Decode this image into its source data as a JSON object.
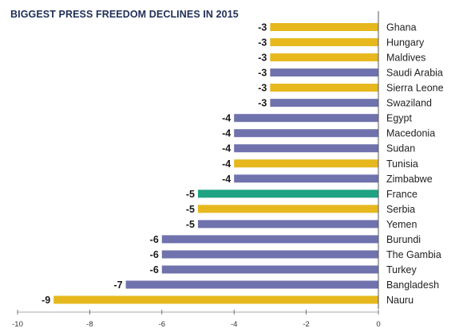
{
  "chart_data": {
    "type": "bar",
    "orientation": "horizontal",
    "title": "BIGGEST PRESS FREEDOM DECLINES IN 2015",
    "xlabel": "",
    "ylabel": "",
    "xlim": [
      -10,
      0
    ],
    "x_ticks": [
      -10,
      -8,
      -6,
      -4,
      -2,
      0
    ],
    "grid": false,
    "legend": "none",
    "categories": [
      "Ghana",
      "Hungary",
      "Maldives",
      "Saudi Arabia",
      "Sierra Leone",
      "Swaziland",
      "Egypt",
      "Macedonia",
      "Sudan",
      "Tunisia",
      "Zimbabwe",
      "France",
      "Serbia",
      "Yemen",
      "Burundi",
      "The Gambia",
      "Turkey",
      "Bangladesh",
      "Nauru"
    ],
    "values": [
      -3,
      -3,
      -3,
      -3,
      -3,
      -3,
      -4,
      -4,
      -4,
      -4,
      -4,
      -5,
      -5,
      -5,
      -6,
      -6,
      -6,
      -7,
      -9
    ],
    "value_labels": [
      "-3",
      "-3",
      "-3",
      "-3",
      "-3",
      "-3",
      "-4",
      "-4",
      "-4",
      "-4",
      "-4",
      "-5",
      "-5",
      "-5",
      "-6",
      "-6",
      "-6",
      "-7",
      "-9"
    ],
    "bar_color_keys": [
      "gold",
      "gold",
      "gold",
      "slate",
      "gold",
      "slate",
      "slate",
      "slate",
      "slate",
      "gold",
      "slate",
      "teal",
      "gold",
      "slate",
      "slate",
      "slate",
      "slate",
      "slate",
      "gold"
    ],
    "colors": {
      "gold": "#e6b81e",
      "slate": "#6f72ad",
      "teal": "#1ea383",
      "axis": "#555555",
      "title": "#1f2f57"
    }
  }
}
